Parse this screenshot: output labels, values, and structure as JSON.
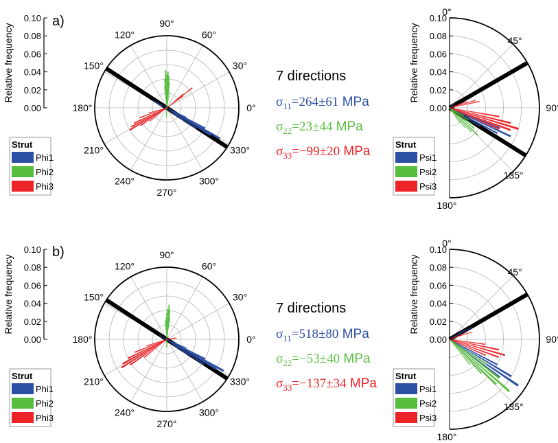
{
  "colors": {
    "phi1": "#2b4fa3",
    "phi2": "#56be3c",
    "phi3": "#ec2327",
    "black": "#000000",
    "grid": "#b4b4b4"
  },
  "panels": [
    {
      "label": "a)",
      "header": "7 directions",
      "stress_lines": [
        {
          "sym": "σ",
          "sub": "11",
          "eq": "=264±61",
          "unit": " MPa",
          "color": "#2b4fa3"
        },
        {
          "sym": "σ",
          "sub": "22",
          "eq": "=23±44",
          "unit": " MPa",
          "color": "#56be3c"
        },
        {
          "sym": "σ",
          "sub": "33",
          "eq": "=−99±20",
          "unit": " MPa",
          "color": "#ec2327"
        }
      ]
    },
    {
      "label": "b)",
      "header": "7 directions",
      "stress_lines": [
        {
          "sym": "σ",
          "sub": "11",
          "eq": "=518±80",
          "unit": " MPa",
          "color": "#2b4fa3"
        },
        {
          "sym": "σ",
          "sub": "22",
          "eq": "=−53±40",
          "unit": " MPa",
          "color": "#56be3c"
        },
        {
          "sym": "σ",
          "sub": "33",
          "eq": "=−137±34",
          "unit": " MPa",
          "color": "#ec2327"
        }
      ]
    }
  ],
  "chart_data": [
    {
      "panel": "a)",
      "type": "polar-rose",
      "role": "phi",
      "ylabel": "Relative frequency",
      "rlim": [
        0,
        0.1
      ],
      "radial_ticks": [
        "0.00",
        "0.02",
        "0.04",
        "0.06",
        "0.08",
        "0.10"
      ],
      "angle_ticks": [
        0,
        30,
        60,
        90,
        120,
        150,
        180,
        210,
        240,
        270,
        300,
        330
      ],
      "angle_tick_labels": [
        "0°",
        "30°",
        "60°",
        "90°",
        "120°",
        "150°",
        "180°",
        "210°",
        "240°",
        "270°",
        "300°",
        "330°"
      ],
      "legend_title": "Strut",
      "legend": [
        "Phi1",
        "Phi2",
        "Phi3"
      ],
      "highlight_angles": [
        147,
        327
      ],
      "series": [
        {
          "key": "phi1",
          "bins": [
            {
              "angle": 152,
              "value": 0.022
            },
            {
              "angle": 155,
              "value": 0.018
            },
            {
              "angle": 158,
              "value": 0.012
            },
            {
              "angle": 320,
              "value": 0.018
            },
            {
              "angle": 322,
              "value": 0.03
            },
            {
              "angle": 325,
              "value": 0.05
            },
            {
              "angle": 328,
              "value": 0.072
            },
            {
              "angle": 330,
              "value": 0.085
            },
            {
              "angle": 332,
              "value": 0.06
            },
            {
              "angle": 334,
              "value": 0.03
            }
          ]
        },
        {
          "key": "phi2",
          "bins": [
            {
              "angle": 84,
              "value": 0.035
            },
            {
              "angle": 86,
              "value": 0.044
            },
            {
              "angle": 88,
              "value": 0.05
            },
            {
              "angle": 90,
              "value": 0.046
            },
            {
              "angle": 92,
              "value": 0.052
            },
            {
              "angle": 94,
              "value": 0.04
            },
            {
              "angle": 96,
              "value": 0.03
            },
            {
              "angle": 80,
              "value": 0.022
            },
            {
              "angle": 265,
              "value": 0.012
            },
            {
              "angle": 270,
              "value": 0.014
            }
          ]
        },
        {
          "key": "phi3",
          "bins": [
            {
              "angle": 36,
              "value": 0.028
            },
            {
              "angle": 38,
              "value": 0.045
            },
            {
              "angle": 40,
              "value": 0.03
            },
            {
              "angle": 196,
              "value": 0.026
            },
            {
              "angle": 200,
              "value": 0.04
            },
            {
              "angle": 205,
              "value": 0.05
            },
            {
              "angle": 208,
              "value": 0.056
            },
            {
              "angle": 211,
              "value": 0.06
            },
            {
              "angle": 214,
              "value": 0.044
            },
            {
              "angle": 218,
              "value": 0.03
            }
          ]
        }
      ]
    },
    {
      "panel": "a)",
      "type": "polar-rose-half",
      "role": "psi",
      "ylabel": "Relative frequency",
      "rlim": [
        0,
        0.1
      ],
      "radial_ticks": [
        "0.00",
        "0.02",
        "0.04",
        "0.06",
        "0.08",
        "0.10"
      ],
      "angle_ticks": [
        0,
        45,
        90,
        135,
        180
      ],
      "angle_tick_labels": [
        "0°",
        "45°",
        "90°",
        "135°",
        "180°"
      ],
      "legend_title": "Strut",
      "legend": [
        "Psi1",
        "Psi2",
        "Psi3"
      ],
      "highlight_angles": [
        60,
        122
      ],
      "series": [
        {
          "key": "phi1",
          "bins": [
            {
              "angle": 45,
              "value": 0.006
            },
            {
              "angle": 50,
              "value": 0.008
            },
            {
              "angle": 112,
              "value": 0.06
            },
            {
              "angle": 115,
              "value": 0.075
            },
            {
              "angle": 118,
              "value": 0.06
            },
            {
              "angle": 121,
              "value": 0.04
            }
          ]
        },
        {
          "key": "phi2",
          "bins": [
            {
              "angle": 118,
              "value": 0.018
            },
            {
              "angle": 122,
              "value": 0.025
            },
            {
              "angle": 126,
              "value": 0.032
            },
            {
              "angle": 130,
              "value": 0.036
            },
            {
              "angle": 134,
              "value": 0.044
            },
            {
              "angle": 138,
              "value": 0.036
            },
            {
              "angle": 142,
              "value": 0.028
            },
            {
              "angle": 146,
              "value": 0.02
            }
          ]
        },
        {
          "key": "phi3",
          "bins": [
            {
              "angle": 70,
              "value": 0.02
            },
            {
              "angle": 74,
              "value": 0.03
            },
            {
              "angle": 78,
              "value": 0.034
            },
            {
              "angle": 100,
              "value": 0.056
            },
            {
              "angle": 104,
              "value": 0.07
            },
            {
              "angle": 107,
              "value": 0.08
            },
            {
              "angle": 110,
              "value": 0.072
            },
            {
              "angle": 113,
              "value": 0.06
            }
          ]
        }
      ]
    },
    {
      "panel": "b)",
      "type": "polar-rose",
      "role": "phi",
      "ylabel": "Relative frequency",
      "rlim": [
        0,
        0.1
      ],
      "radial_ticks": [
        "0.00",
        "0.02",
        "0.04",
        "0.06",
        "0.08",
        "0.10"
      ],
      "angle_ticks": [
        0,
        30,
        60,
        90,
        120,
        150,
        180,
        210,
        240,
        270,
        300,
        330
      ],
      "angle_tick_labels": [
        "0°",
        "30°",
        "60°",
        "90°",
        "120°",
        "150°",
        "180°",
        "210°",
        "240°",
        "270°",
        "300°",
        "330°"
      ],
      "legend_title": "Strut",
      "legend": [
        "Phi1",
        "Phi2",
        "Phi3"
      ],
      "highlight_angles": [
        147,
        327
      ],
      "series": [
        {
          "key": "phi1",
          "bins": [
            {
              "angle": 150,
              "value": 0.012
            },
            {
              "angle": 153,
              "value": 0.01
            },
            {
              "angle": 320,
              "value": 0.02
            },
            {
              "angle": 323,
              "value": 0.04
            },
            {
              "angle": 326,
              "value": 0.062
            },
            {
              "angle": 329,
              "value": 0.08
            },
            {
              "angle": 331,
              "value": 0.09
            },
            {
              "angle": 333,
              "value": 0.06
            },
            {
              "angle": 336,
              "value": 0.03
            }
          ]
        },
        {
          "key": "phi2",
          "bins": [
            {
              "angle": 82,
              "value": 0.03
            },
            {
              "angle": 84,
              "value": 0.04
            },
            {
              "angle": 86,
              "value": 0.048
            },
            {
              "angle": 88,
              "value": 0.042
            },
            {
              "angle": 90,
              "value": 0.036
            },
            {
              "angle": 92,
              "value": 0.03
            },
            {
              "angle": 95,
              "value": 0.026
            },
            {
              "angle": 265,
              "value": 0.012
            },
            {
              "angle": 275,
              "value": 0.01
            }
          ]
        },
        {
          "key": "phi3",
          "bins": [
            {
              "angle": 5,
              "value": 0.014
            },
            {
              "angle": 10,
              "value": 0.012
            },
            {
              "angle": 198,
              "value": 0.03
            },
            {
              "angle": 202,
              "value": 0.048
            },
            {
              "angle": 206,
              "value": 0.06
            },
            {
              "angle": 209,
              "value": 0.07
            },
            {
              "angle": 212,
              "value": 0.074
            },
            {
              "angle": 215,
              "value": 0.062
            },
            {
              "angle": 219,
              "value": 0.04
            }
          ]
        }
      ]
    },
    {
      "panel": "b)",
      "type": "polar-rose-half",
      "role": "psi",
      "ylabel": "Relative frequency",
      "rlim": [
        0,
        0.1
      ],
      "radial_ticks": [
        "0.00",
        "0.02",
        "0.04",
        "0.06",
        "0.08",
        "0.10"
      ],
      "angle_ticks": [
        0,
        45,
        90,
        135,
        180
      ],
      "angle_tick_labels": [
        "0°",
        "45°",
        "90°",
        "135°",
        "180°"
      ],
      "legend_title": "Strut",
      "legend": [
        "Psi1",
        "Psi2",
        "Psi3"
      ],
      "highlight_angles": [
        60
      ],
      "series": [
        {
          "key": "phi1",
          "bins": [
            {
              "angle": 58,
              "value": 0.02
            },
            {
              "angle": 62,
              "value": 0.028
            },
            {
              "angle": 118,
              "value": 0.06
            },
            {
              "angle": 121,
              "value": 0.08
            },
            {
              "angle": 124,
              "value": 0.092
            },
            {
              "angle": 127,
              "value": 0.07
            }
          ]
        },
        {
          "key": "phi2",
          "bins": [
            {
              "angle": 124,
              "value": 0.05
            },
            {
              "angle": 128,
              "value": 0.07
            },
            {
              "angle": 131,
              "value": 0.088
            },
            {
              "angle": 134,
              "value": 0.072
            },
            {
              "angle": 137,
              "value": 0.052
            },
            {
              "angle": 141,
              "value": 0.036
            }
          ]
        },
        {
          "key": "phi3",
          "bins": [
            {
              "angle": 68,
              "value": 0.018
            },
            {
              "angle": 72,
              "value": 0.026
            },
            {
              "angle": 98,
              "value": 0.04
            },
            {
              "angle": 102,
              "value": 0.056
            },
            {
              "angle": 106,
              "value": 0.064
            },
            {
              "angle": 110,
              "value": 0.058
            },
            {
              "angle": 114,
              "value": 0.044
            }
          ]
        }
      ]
    }
  ]
}
